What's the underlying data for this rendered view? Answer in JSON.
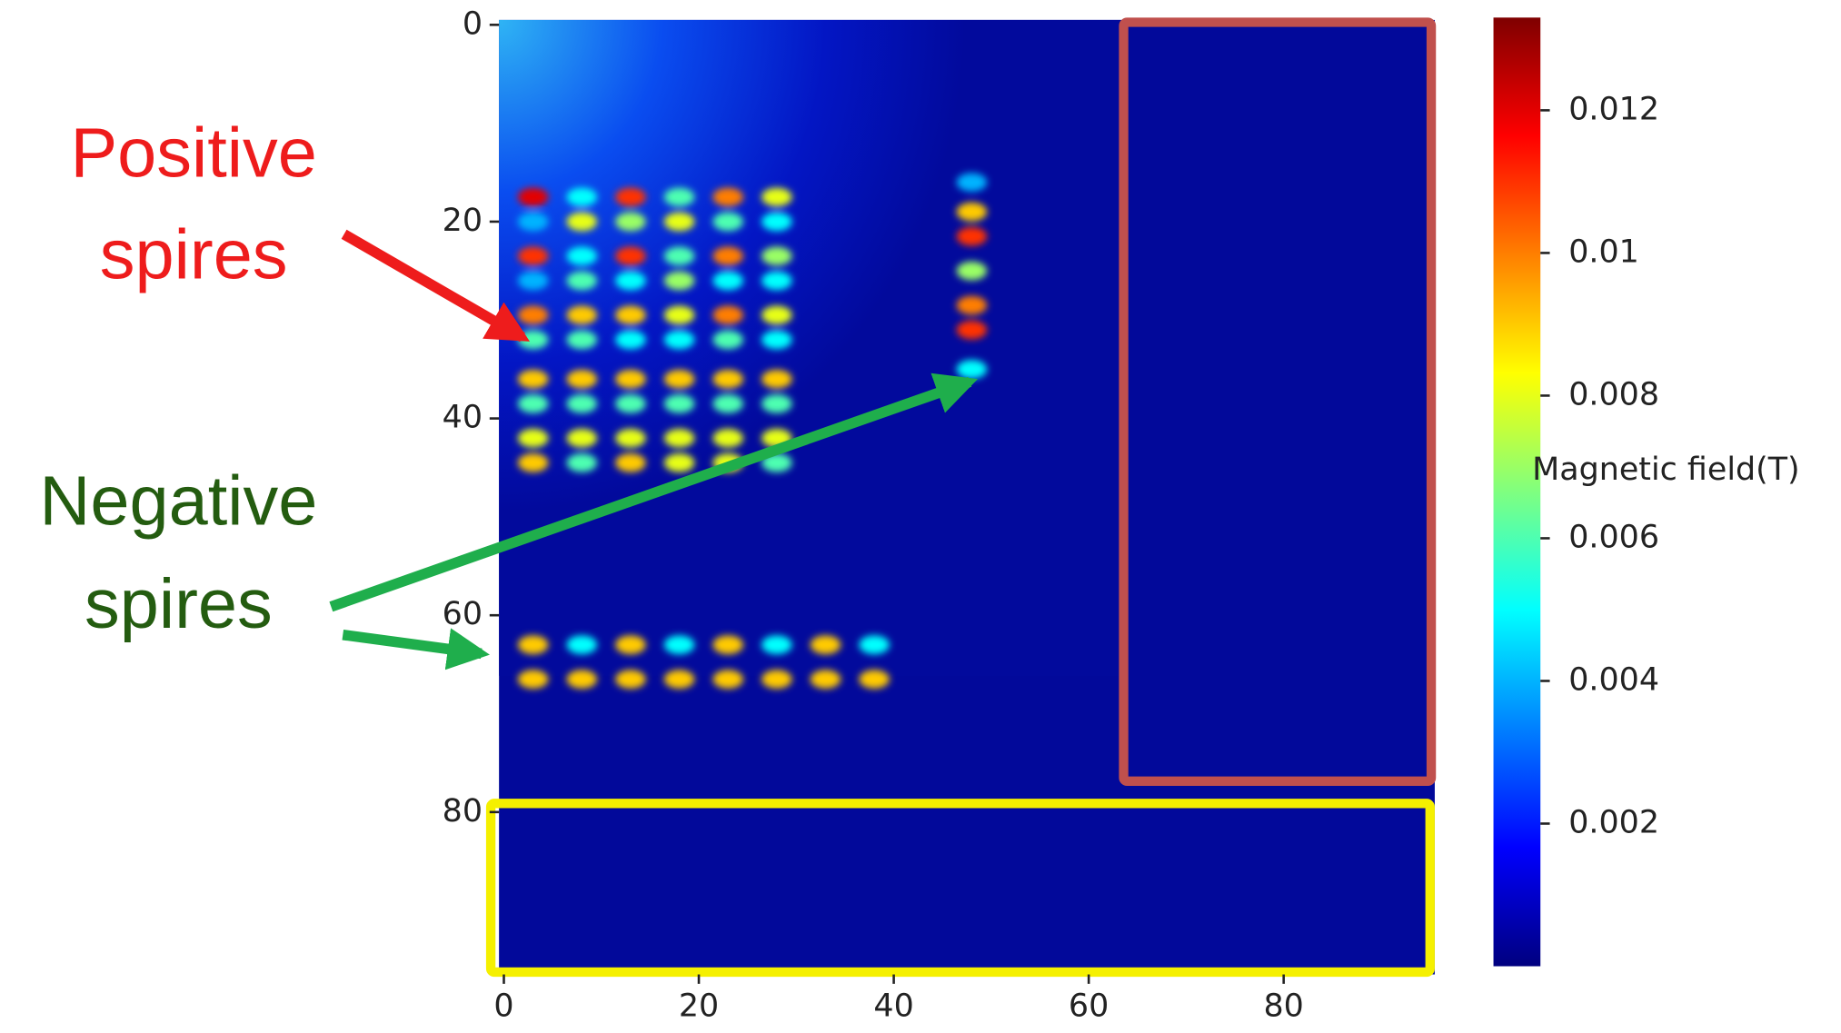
{
  "chart_data": {
    "type": "heatmap",
    "colorbar_label": "Magnetic field(T)",
    "clim": [
      0,
      0.0133
    ],
    "colorbar_ticks": [
      0.002,
      0.004,
      0.006,
      0.008,
      0.01,
      0.012
    ],
    "xlim": [
      -0.5,
      95.5
    ],
    "ylim": [
      96.5,
      -0.5
    ],
    "xticks": [
      0,
      20,
      40,
      60,
      80
    ],
    "yticks": [
      0,
      20,
      40,
      60,
      80
    ],
    "annotations": {
      "positive": [
        "Positive",
        "spires"
      ],
      "negative": [
        "Negative",
        "spires"
      ]
    },
    "spire_groups": [
      {
        "x": [
          3,
          8,
          13,
          18,
          23,
          28
        ],
        "y": [
          17.5,
          20,
          23.5,
          26,
          29.5,
          32,
          36,
          38.5,
          42,
          44.5
        ],
        "values": [
          [
            0.012,
            0.005,
            0.011,
            0.006,
            0.01,
            0.008
          ],
          [
            0.004,
            0.008,
            0.007,
            0.008,
            0.006,
            0.005
          ],
          [
            0.011,
            0.005,
            0.011,
            0.006,
            0.01,
            0.007
          ],
          [
            0.004,
            0.006,
            0.005,
            0.007,
            0.005,
            0.005
          ],
          [
            0.01,
            0.009,
            0.009,
            0.008,
            0.01,
            0.008
          ],
          [
            0.006,
            0.006,
            0.005,
            0.005,
            0.006,
            0.005
          ],
          [
            0.009,
            0.009,
            0.009,
            0.009,
            0.009,
            0.009
          ],
          [
            0.006,
            0.006,
            0.006,
            0.006,
            0.006,
            0.006
          ],
          [
            0.008,
            0.008,
            0.008,
            0.008,
            0.008,
            0.008
          ],
          [
            0.009,
            0.006,
            0.009,
            0.008,
            0.008,
            0.006
          ]
        ]
      },
      {
        "x": [
          48
        ],
        "y": [
          16,
          19,
          21.5,
          25,
          28.5,
          31,
          35
        ],
        "values": [
          [
            0.004
          ],
          [
            0.009
          ],
          [
            0.011
          ],
          [
            0.007
          ],
          [
            0.01
          ],
          [
            0.011
          ],
          [
            0.005
          ]
        ]
      },
      {
        "x": [
          3,
          8,
          13,
          18,
          23,
          28,
          33,
          38
        ],
        "y": [
          63,
          66.5
        ],
        "values": [
          [
            0.009,
            0.005,
            0.009,
            0.005,
            0.009,
            0.005,
            0.009,
            0.005
          ],
          [
            0.009,
            0.009,
            0.009,
            0.009,
            0.009,
            0.009,
            0.009,
            0.009
          ]
        ]
      }
    ]
  }
}
